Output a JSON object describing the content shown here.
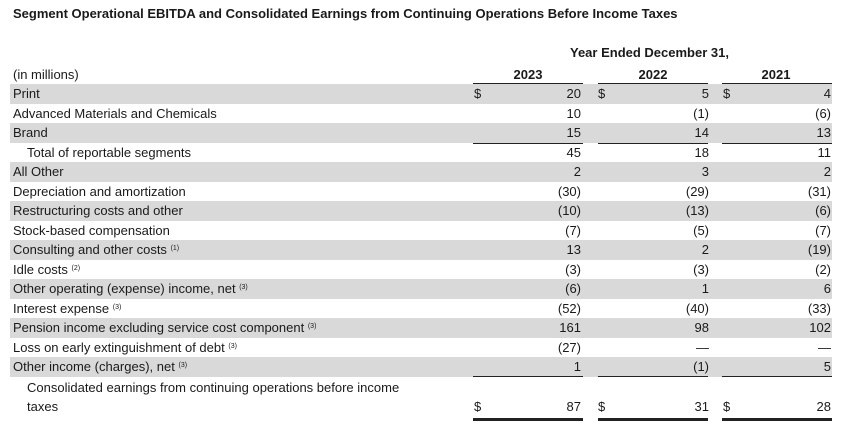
{
  "title": "Segment Operational EBITDA and Consolidated Earnings from Continuing Operations Before Income Taxes",
  "period_header": "Year Ended December 31,",
  "unit_label": "(in millions)",
  "years": [
    "2023",
    "2022",
    "2021"
  ],
  "currency": "$",
  "rows": [
    {
      "label": "Print",
      "values": [
        "20",
        "5",
        "4"
      ],
      "dollar": true
    },
    {
      "label": "Advanced Materials and Chemicals",
      "values": [
        "10",
        "(1)",
        "(6)"
      ]
    },
    {
      "label": "Brand",
      "values": [
        "15",
        "14",
        "13"
      ]
    },
    {
      "label": "Total of reportable segments",
      "values": [
        "45",
        "18",
        "11"
      ]
    },
    {
      "label": "All Other",
      "values": [
        "2",
        "3",
        "2"
      ]
    },
    {
      "label": "Depreciation and amortization",
      "values": [
        "(30)",
        "(29)",
        "(31)"
      ]
    },
    {
      "label": "Restructuring costs and other",
      "values": [
        "(10)",
        "(13)",
        "(6)"
      ]
    },
    {
      "label": "Stock-based compensation",
      "values": [
        "(7)",
        "(5)",
        "(7)"
      ]
    },
    {
      "label": "Consulting and other costs",
      "note": "(1)",
      "values": [
        "13",
        "2",
        "(19)"
      ]
    },
    {
      "label": "Idle costs",
      "note": "(2)",
      "values": [
        "(3)",
        "(3)",
        "(2)"
      ]
    },
    {
      "label": "Other operating (expense) income, net",
      "note": "(3)",
      "values": [
        "(6)",
        "1",
        "6"
      ]
    },
    {
      "label": "Interest expense",
      "note": "(3)",
      "values": [
        "(52)",
        "(40)",
        "(33)"
      ]
    },
    {
      "label": "Pension income excluding service cost component",
      "note": "(3)",
      "values": [
        "161",
        "98",
        "102"
      ]
    },
    {
      "label": "Loss on early extinguishment of debt",
      "note": "(3)",
      "values": [
        "(27)",
        "—",
        "—"
      ]
    },
    {
      "label": "Other income (charges), net",
      "note": "(3)",
      "values": [
        "1",
        "(1)",
        "5"
      ]
    }
  ],
  "total": {
    "label_line1": "Consolidated earnings from continuing operations before income",
    "label_line2": "taxes",
    "values": [
      "87",
      "31",
      "28"
    ]
  }
}
